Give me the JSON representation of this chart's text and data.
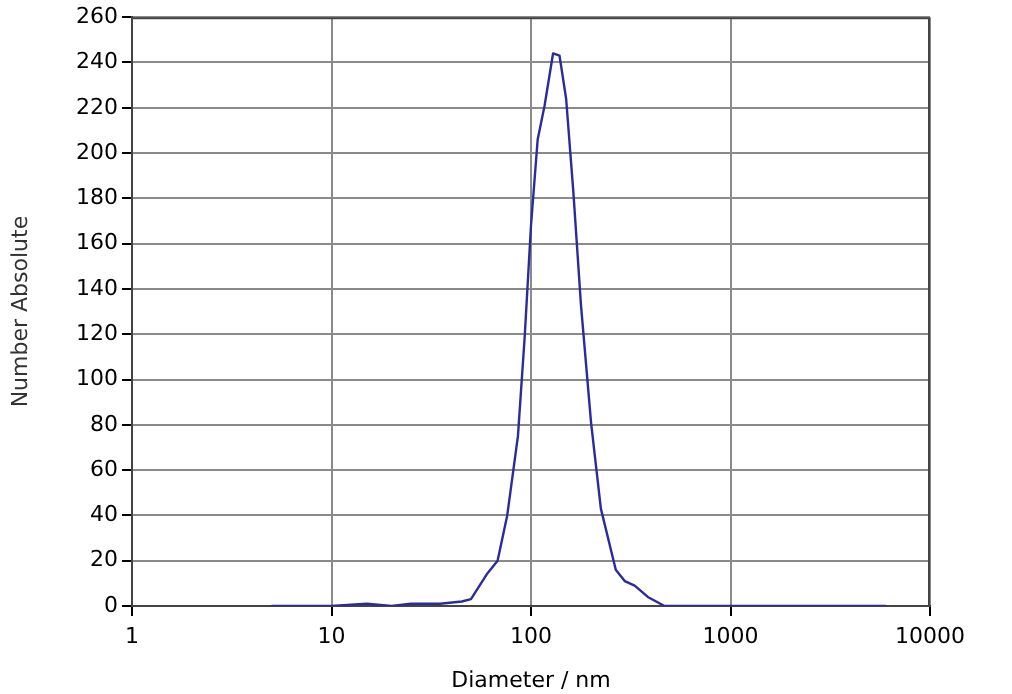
{
  "chart_data": {
    "type": "line",
    "xlabel": "Diameter / nm",
    "ylabel": "Number Absolute",
    "x": [
      5,
      10,
      15,
      20,
      25,
      35,
      45,
      50,
      60,
      68,
      76,
      86,
      93,
      100,
      108,
      117,
      129,
      139,
      150,
      163,
      178,
      200,
      224,
      266,
      295,
      331,
      385,
      467,
      600,
      1000,
      3000,
      6000
    ],
    "series": [
      {
        "color": "#2b2b9e",
        "values": [
          0,
          0,
          1,
          0,
          1,
          1,
          2,
          3,
          14,
          20,
          40,
          75,
          119,
          168,
          206,
          221,
          244,
          243,
          224,
          183,
          133,
          81,
          43,
          16,
          11,
          9,
          4,
          0,
          0,
          0,
          0,
          0
        ]
      }
    ],
    "log": "x",
    "xlim": [
      1,
      10000
    ],
    "xticks": [
      1,
      10,
      100,
      1000,
      10000
    ],
    "ylim": [
      0,
      260
    ],
    "yticks": [
      0,
      20,
      40,
      60,
      80,
      100,
      120,
      140,
      160,
      180,
      200,
      220,
      240,
      260
    ],
    "grid": true,
    "legend": false,
    "marker": "none",
    "line_style": "solid"
  }
}
